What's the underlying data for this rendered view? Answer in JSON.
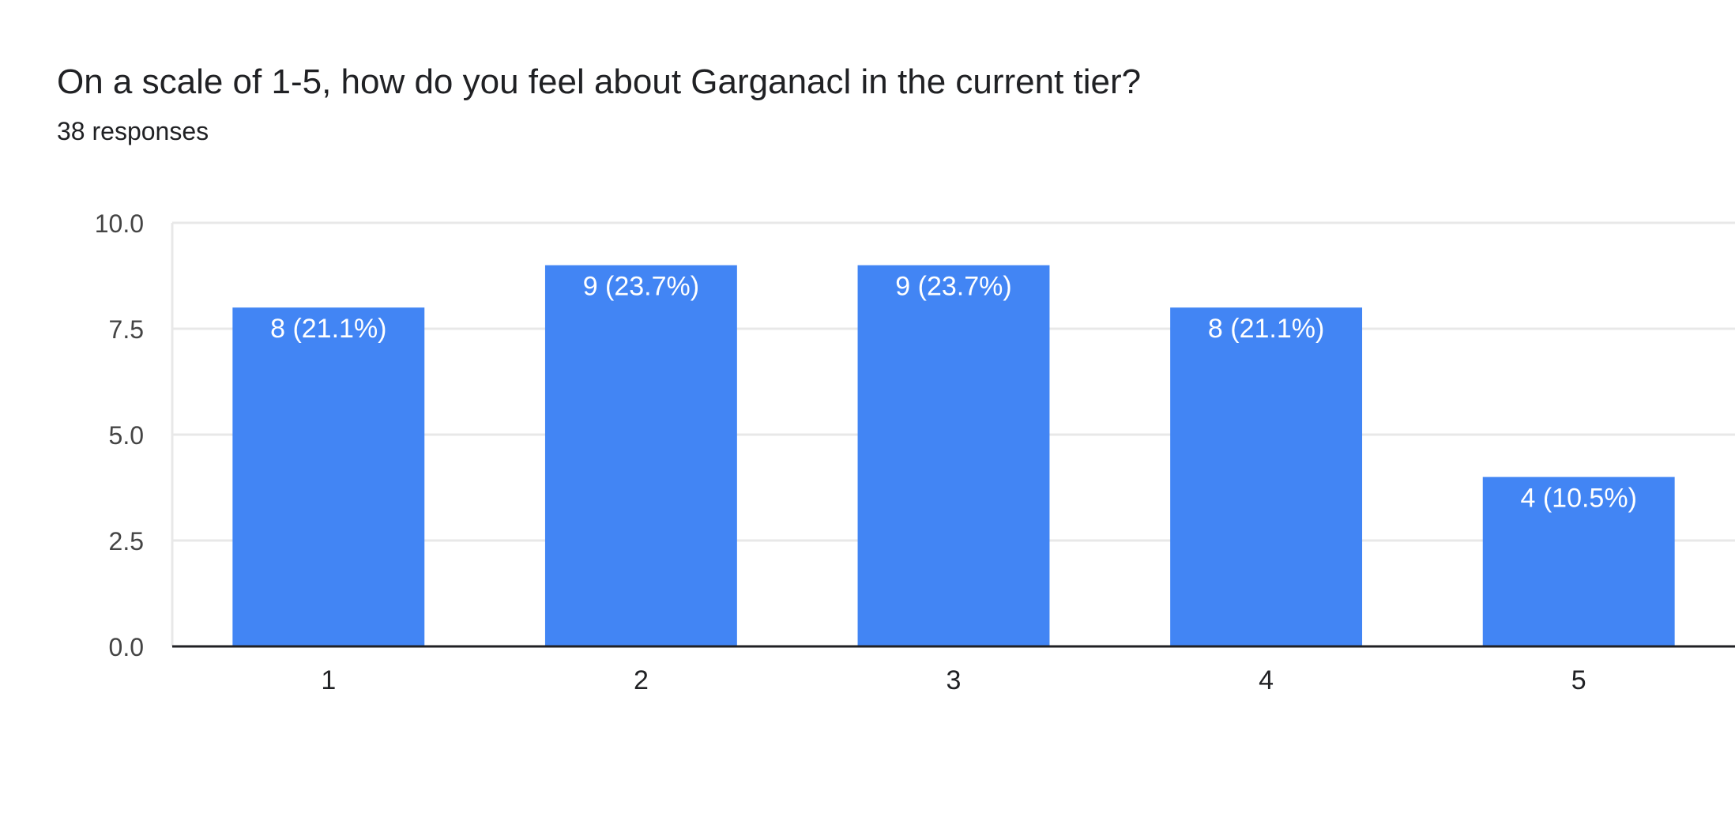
{
  "form_question": {
    "title": "On a scale of 1-5, how do you feel about Garganacl in the current tier?",
    "response_count": "38 responses"
  },
  "colors": {
    "bar": "#4285f4",
    "bar_label": "#ffffff",
    "grid": "#e8e8e8",
    "axis": "#202124",
    "tick_label": "#444444",
    "text": "#202124"
  },
  "chart_data": {
    "type": "bar",
    "categories": [
      "1",
      "2",
      "3",
      "4",
      "5"
    ],
    "values": [
      8,
      9,
      9,
      8,
      4
    ],
    "data_labels": [
      "8 (21.1%)",
      "9 (23.7%)",
      "9 (23.7%)",
      "8 (21.1%)",
      "4 (10.5%)"
    ],
    "y_ticks": [
      "0.0",
      "2.5",
      "5.0",
      "7.5",
      "10.0"
    ],
    "ylim": [
      0,
      10
    ],
    "grid": true,
    "legend": "none"
  }
}
